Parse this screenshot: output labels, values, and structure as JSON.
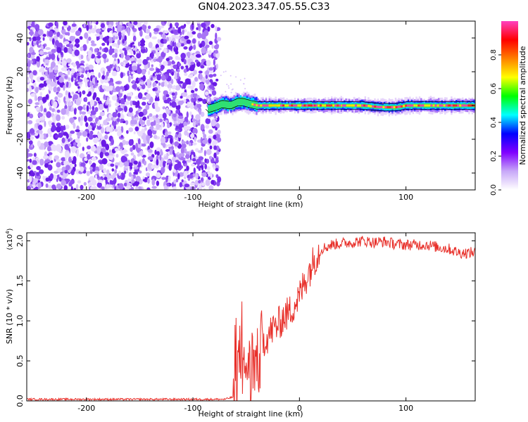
{
  "figure": {
    "title": "GN04.2023.347.05.55.C33"
  },
  "chart_data": [
    {
      "type": "heatmap",
      "title": "GN04.2023.347.05.55.C33",
      "xlabel": "Height of straight line (km)",
      "ylabel": "Frequency (Hz)",
      "xlim": [
        -256,
        165
      ],
      "ylim": [
        -50,
        50
      ],
      "xticks": [
        -200,
        -100,
        0,
        100
      ],
      "yticks": [
        -40,
        -20,
        0,
        20,
        40
      ],
      "xtick_labels": [
        "-200",
        "-100",
        "0",
        "100"
      ],
      "ytick_labels": [
        "-40",
        "-20",
        "0",
        "20",
        "40"
      ],
      "grid": false,
      "noise_region": {
        "x": [
          -256,
          -78
        ],
        "frequency": [
          -50,
          50
        ]
      },
      "ridge": [
        {
          "x": -86,
          "f": -2
        },
        {
          "x": -80,
          "f": -1
        },
        {
          "x": -72,
          "f": 1
        },
        {
          "x": -65,
          "f": 0
        },
        {
          "x": -58,
          "f": 2
        },
        {
          "x": -53,
          "f": 2
        },
        {
          "x": -47,
          "f": 1
        },
        {
          "x": -40,
          "f": 0
        },
        {
          "x": -30,
          "f": 0
        },
        {
          "x": -10,
          "f": 0
        },
        {
          "x": 10,
          "f": 0
        },
        {
          "x": 40,
          "f": 0
        },
        {
          "x": 60,
          "f": 0
        },
        {
          "x": 75,
          "f": -1
        },
        {
          "x": 90,
          "f": -1
        },
        {
          "x": 100,
          "f": 0
        },
        {
          "x": 130,
          "f": 0
        },
        {
          "x": 165,
          "f": 0
        }
      ],
      "colorbar": {
        "label": "Normalized spectral amplitude",
        "range": [
          0,
          1
        ],
        "ticks": [
          0.0,
          0.2,
          0.4,
          0.6,
          0.8
        ],
        "tick_labels": [
          "0.0",
          "0.2",
          "0.4",
          "0.6",
          "0.8"
        ],
        "colormap": [
          "#ffffff",
          "#c8a8f8",
          "#8000ff",
          "#0000ff",
          "#00ffff",
          "#00ff00",
          "#ffff00",
          "#ff8000",
          "#ff0000",
          "#ff40c0"
        ]
      }
    },
    {
      "type": "line",
      "xlabel": "Height of straight line (km)",
      "ylabel": "SNR (10 * v/v)",
      "y_scale_label": "(x10",
      "y_scale_exponent": "4",
      "y_scale_suffix": ")",
      "xlim": [
        -256,
        165
      ],
      "ylim": [
        0,
        2.1
      ],
      "xticks": [
        -200,
        -100,
        0,
        100
      ],
      "yticks": [
        0.0,
        0.5,
        1.0,
        1.5,
        2.0
      ],
      "xtick_labels": [
        "-200",
        "-100",
        "0",
        "100"
      ],
      "ytick_labels": [
        "0.0",
        "0.5",
        "1.0",
        "1.5",
        "2.0"
      ],
      "grid": false,
      "series": [
        {
          "color": "#e8302a",
          "x": [
            -256,
            -200,
            -150,
            -100,
            -70,
            -62,
            -58,
            -55,
            -52,
            -48,
            -45,
            -42,
            -38,
            -35,
            -30,
            -25,
            -20,
            -15,
            -10,
            -5,
            0,
            5,
            10,
            15,
            20,
            25,
            30,
            40,
            50,
            60,
            70,
            80,
            90,
            100,
            110,
            120,
            130,
            140,
            150,
            160,
            165
          ],
          "y": [
            0.02,
            0.02,
            0.02,
            0.02,
            0.02,
            0.05,
            0.4,
            0.6,
            0.3,
            0.55,
            0.1,
            0.5,
            0.45,
            0.75,
            0.8,
            0.9,
            0.95,
            1.05,
            1.1,
            1.2,
            1.3,
            1.5,
            1.65,
            1.8,
            1.9,
            1.92,
            1.95,
            1.97,
            1.98,
            2.0,
            1.98,
            1.99,
            1.96,
            1.95,
            1.95,
            1.95,
            1.92,
            1.9,
            1.85,
            1.85,
            1.86
          ]
        }
      ]
    }
  ]
}
